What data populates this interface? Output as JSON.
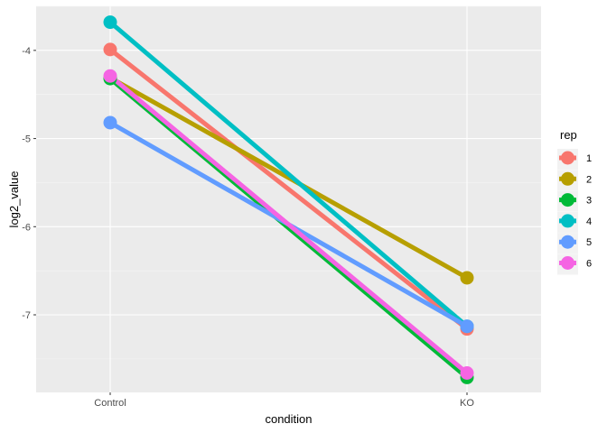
{
  "chart_data": {
    "type": "line",
    "xlabel": "condition",
    "ylabel": "log2_value",
    "categories": [
      "Control",
      "KO"
    ],
    "ylim": [
      -7.88,
      -3.5
    ],
    "y_ticks": [
      -4,
      -5,
      -6,
      -7
    ],
    "grid": true,
    "legend": {
      "title": "rep",
      "position": "right"
    },
    "series": [
      {
        "name": "1",
        "color": "#F8766D",
        "values": [
          -3.99,
          -7.16
        ]
      },
      {
        "name": "2",
        "color": "#B79F00",
        "values": [
          -4.31,
          -6.58
        ]
      },
      {
        "name": "3",
        "color": "#00BA38",
        "values": [
          -4.32,
          -7.71
        ]
      },
      {
        "name": "4",
        "color": "#00BFC4",
        "values": [
          -3.68,
          -7.13
        ]
      },
      {
        "name": "5",
        "color": "#619CFF",
        "values": [
          -4.82,
          -7.13
        ]
      },
      {
        "name": "6",
        "color": "#F564E3",
        "values": [
          -4.29,
          -7.66
        ]
      }
    ]
  }
}
